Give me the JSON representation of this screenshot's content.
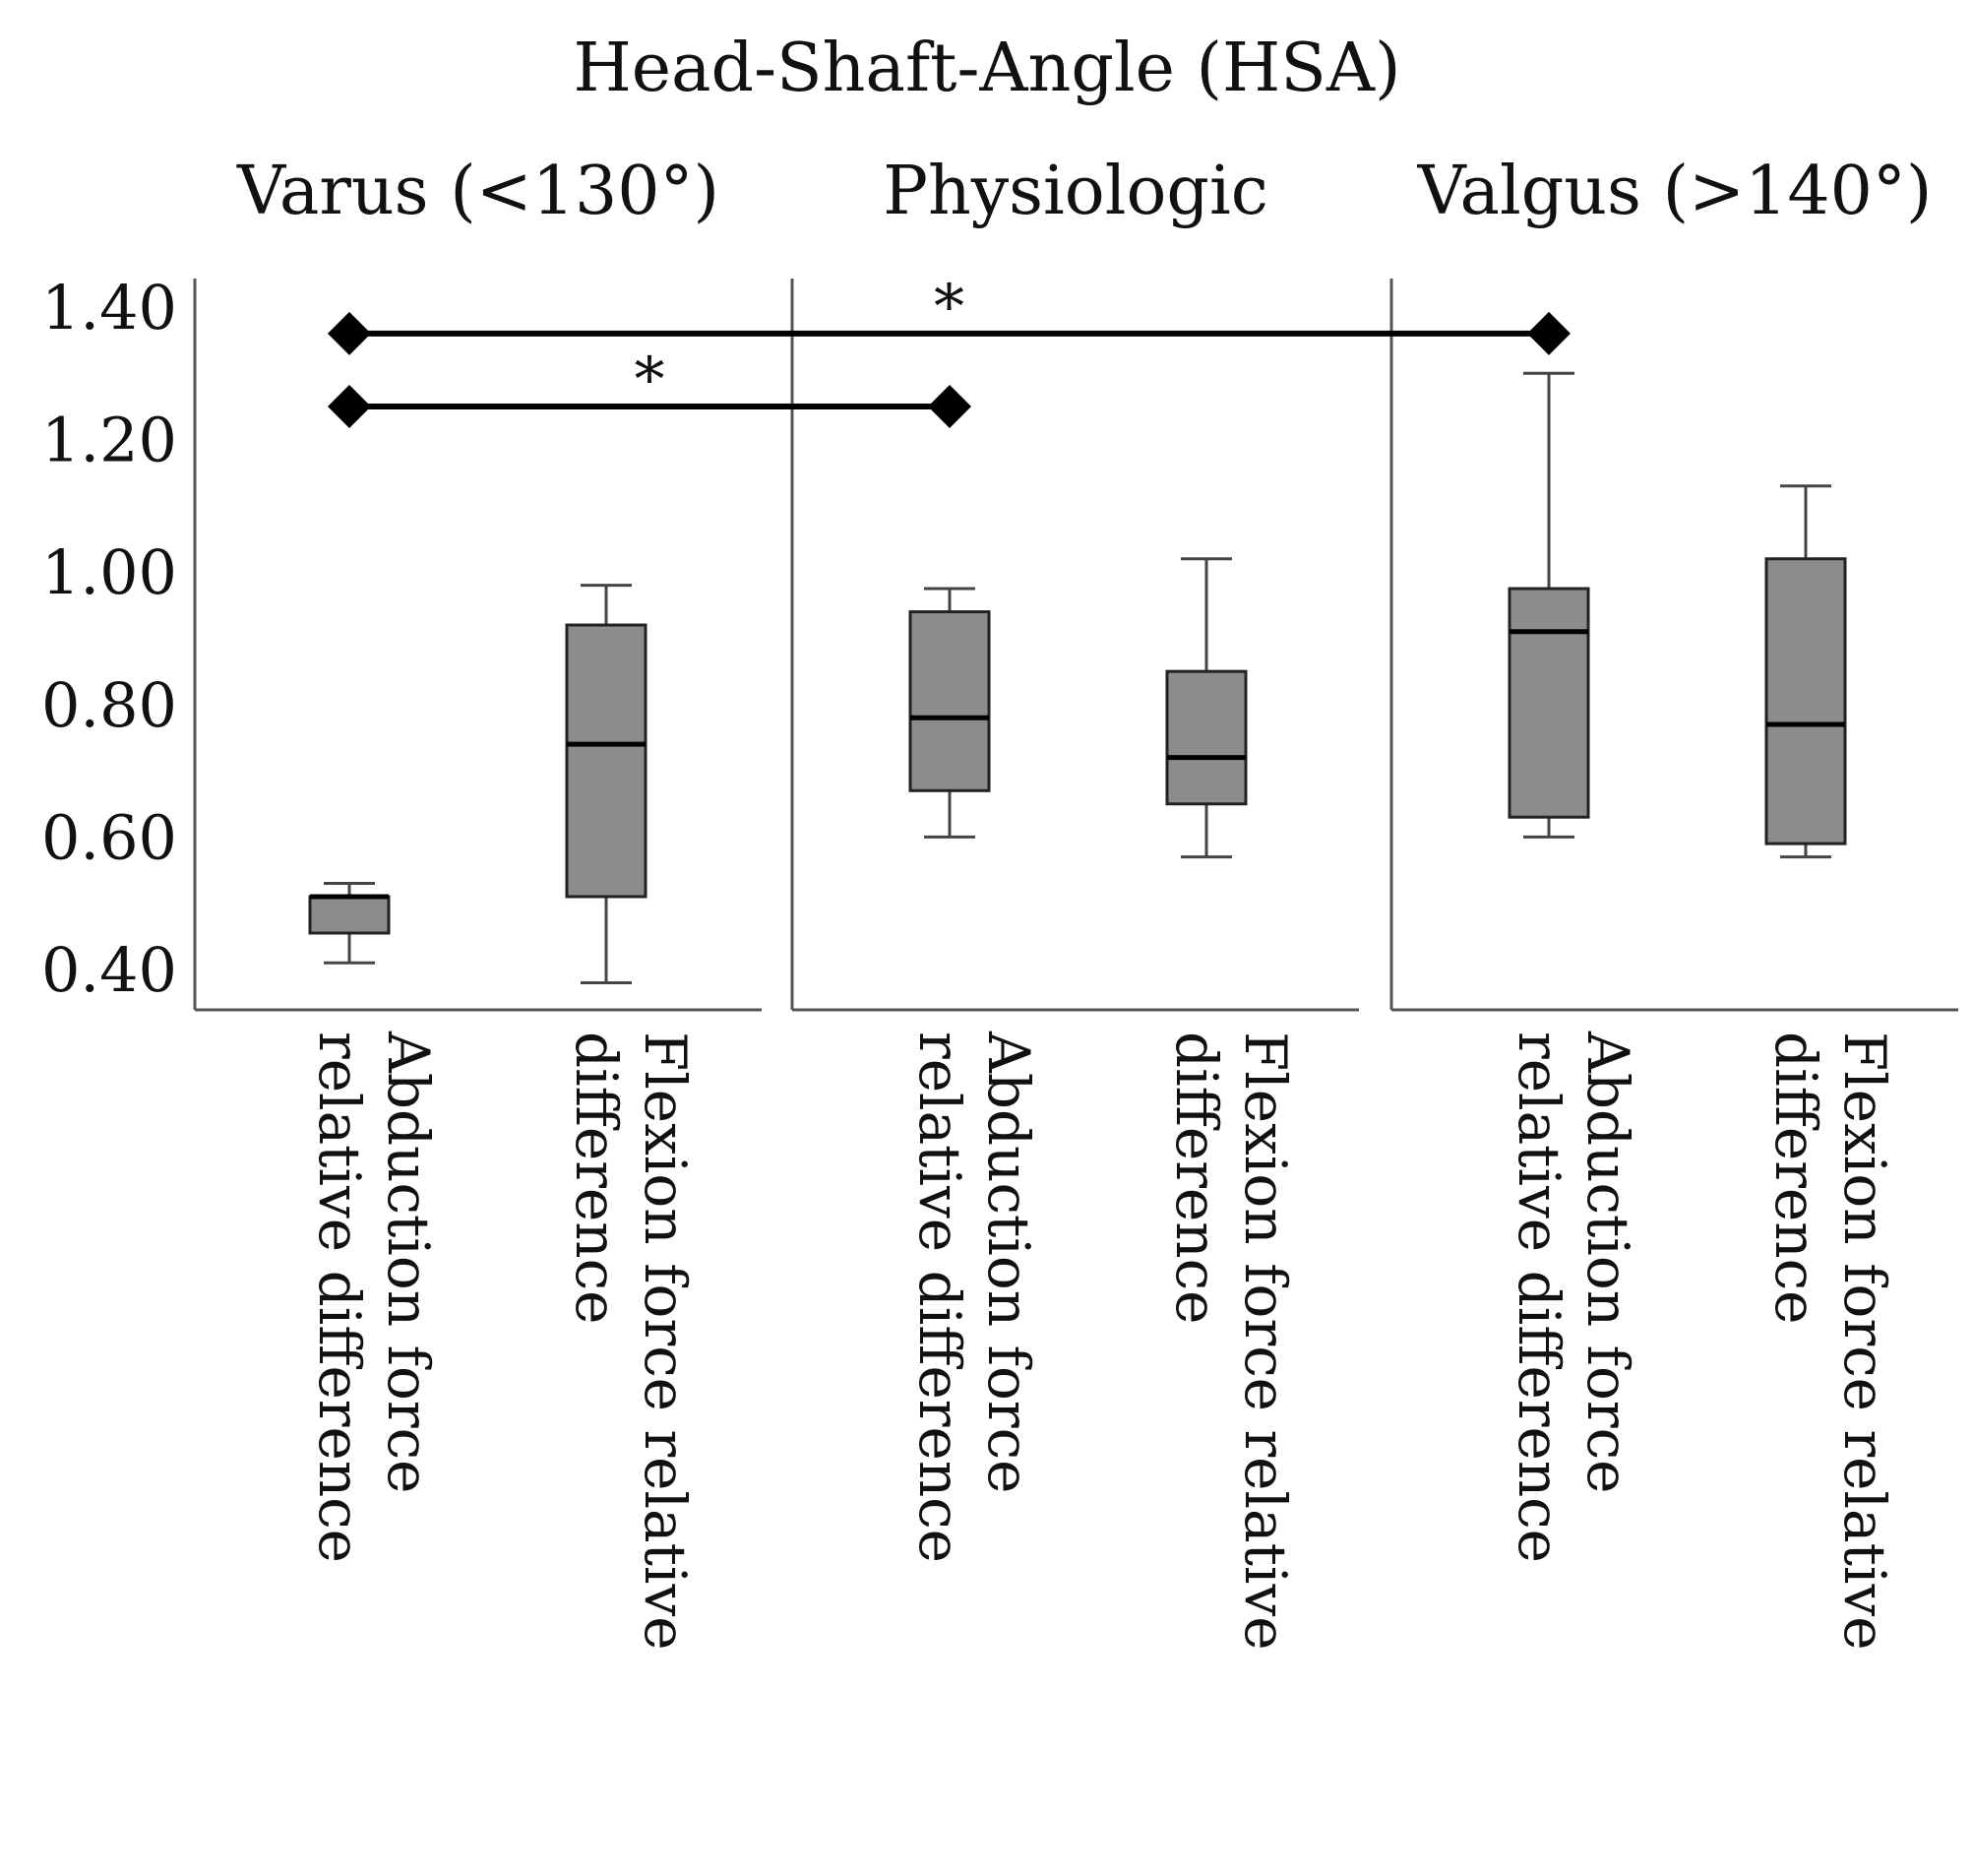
{
  "chart_data": {
    "type": "box",
    "title": "Head-Shaft-Angle (HSA)",
    "ylim": [
      0.38,
      1.44
    ],
    "yticks": [
      0.4,
      0.6,
      0.8,
      1.0,
      1.2,
      1.4
    ],
    "ytick_labels": [
      "0.40",
      "0.60",
      "0.80",
      "1.00",
      "1.20",
      "1.40"
    ],
    "grid": false,
    "colors": {
      "box_fill": "#8c8c8c",
      "box_edge": "#222222",
      "whisker": "#444444",
      "median": "#000000",
      "axis": "#555555",
      "bracket": "#000000"
    },
    "panels": [
      {
        "title": "Varus (<130°)",
        "boxes": [
          {
            "category_lines": [
              "Abduction force",
              "relative difference"
            ],
            "min": 0.41,
            "q1": 0.455,
            "median": 0.51,
            "q3": 0.51,
            "max": 0.53
          },
          {
            "category_lines": [
              "Flexion force relative",
              "difference"
            ],
            "min": 0.38,
            "q1": 0.51,
            "median": 0.74,
            "q3": 0.92,
            "max": 0.98
          }
        ]
      },
      {
        "title": "Physiologic",
        "boxes": [
          {
            "category_lines": [
              "Abduction force",
              "relative difference"
            ],
            "min": 0.6,
            "q1": 0.67,
            "median": 0.78,
            "q3": 0.94,
            "max": 0.975
          },
          {
            "category_lines": [
              "Flexion force relative",
              "difference"
            ],
            "min": 0.57,
            "q1": 0.65,
            "median": 0.72,
            "q3": 0.85,
            "max": 1.02
          }
        ]
      },
      {
        "title": "Valgus (>140°)",
        "boxes": [
          {
            "category_lines": [
              "Abduction force",
              "relative difference"
            ],
            "min": 0.6,
            "q1": 0.63,
            "median": 0.91,
            "q3": 0.975,
            "max": 1.3
          },
          {
            "category_lines": [
              "Flexion force relative",
              "difference"
            ],
            "min": 0.57,
            "q1": 0.59,
            "median": 0.77,
            "q3": 1.02,
            "max": 1.13
          }
        ]
      }
    ],
    "annotations": [
      {
        "label": "*",
        "from": {
          "panel": 0,
          "box": 0
        },
        "to": {
          "panel": 2,
          "box": 0
        },
        "y": 1.36
      },
      {
        "label": "*",
        "from": {
          "panel": 0,
          "box": 0
        },
        "to": {
          "panel": 1,
          "box": 0
        },
        "y": 1.25
      }
    ]
  }
}
